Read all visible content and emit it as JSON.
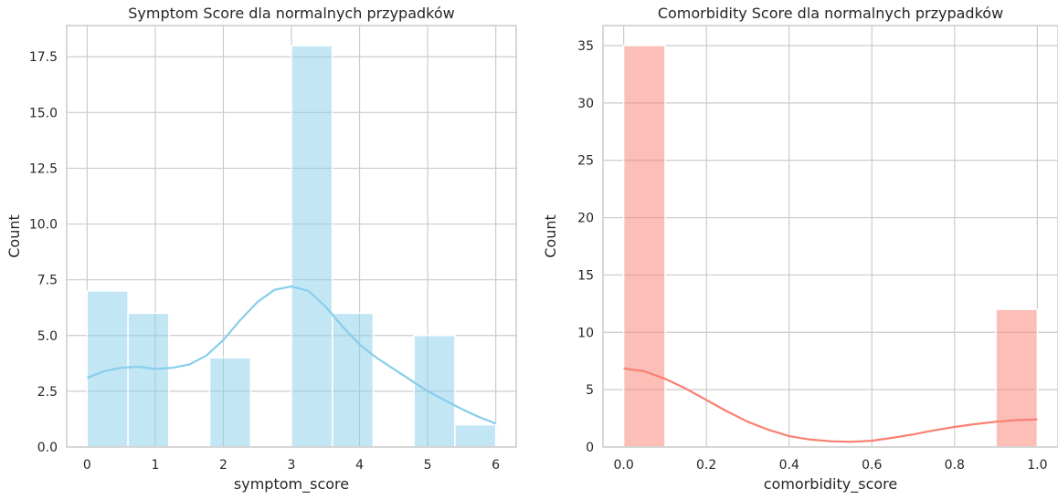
{
  "chart_data": [
    {
      "type": "bar",
      "title": "Symptom Score dla normalnych przypadków",
      "xlabel": "symptom_score",
      "ylabel": "Count",
      "xlim": [
        -0.3,
        6.3
      ],
      "ylim": [
        0,
        18.9
      ],
      "xticks": [
        0,
        1,
        2,
        3,
        4,
        5,
        6
      ],
      "xtick_labels": [
        "0",
        "1",
        "2",
        "3",
        "4",
        "5",
        "6"
      ],
      "yticks": [
        0,
        2.5,
        5,
        7.5,
        10,
        12.5,
        15,
        17.5
      ],
      "ytick_labels": [
        "0.0",
        "2.5",
        "5.0",
        "7.5",
        "10.0",
        "12.5",
        "15.0",
        "17.5"
      ],
      "grid": true,
      "bar_color": "#87CEEB",
      "bins": [
        {
          "x0": 0.0,
          "x1": 0.6,
          "count": 7
        },
        {
          "x0": 0.6,
          "x1": 1.2,
          "count": 6
        },
        {
          "x0": 1.8,
          "x1": 2.4,
          "count": 4
        },
        {
          "x0": 3.0,
          "x1": 3.6,
          "count": 18
        },
        {
          "x0": 3.6,
          "x1": 4.2,
          "count": 6
        },
        {
          "x0": 4.8,
          "x1": 5.4,
          "count": 5
        },
        {
          "x0": 5.4,
          "x1": 6.0,
          "count": 1
        }
      ],
      "kde": {
        "color": "#87CEEB",
        "x": [
          0,
          0.25,
          0.5,
          0.75,
          1.0,
          1.25,
          1.5,
          1.75,
          2.0,
          2.25,
          2.5,
          2.75,
          3.0,
          3.25,
          3.5,
          3.75,
          4.0,
          4.25,
          4.5,
          4.75,
          5.0,
          5.25,
          5.5,
          5.75,
          6.0
        ],
        "y": [
          3.1,
          3.4,
          3.55,
          3.6,
          3.5,
          3.55,
          3.7,
          4.1,
          4.8,
          5.7,
          6.5,
          7.05,
          7.2,
          7.0,
          6.3,
          5.4,
          4.6,
          4.0,
          3.5,
          3.0,
          2.5,
          2.1,
          1.7,
          1.35,
          1.05
        ]
      }
    },
    {
      "type": "bar",
      "title": "Comorbidity Score dla normalnych przypadków",
      "xlabel": "comorbidity_score",
      "ylabel": "Count",
      "xlim": [
        -0.05,
        1.05
      ],
      "ylim": [
        0,
        36.75
      ],
      "xticks": [
        0,
        0.2,
        0.4,
        0.6,
        0.8,
        1.0
      ],
      "xtick_labels": [
        "0.0",
        "0.2",
        "0.4",
        "0.6",
        "0.8",
        "1.0"
      ],
      "yticks": [
        0,
        5,
        10,
        15,
        20,
        25,
        30,
        35
      ],
      "ytick_labels": [
        "0",
        "5",
        "10",
        "15",
        "20",
        "25",
        "30",
        "35"
      ],
      "grid": true,
      "bar_color": "#FA8072",
      "bins": [
        {
          "x0": 0.0,
          "x1": 0.1,
          "count": 35
        },
        {
          "x0": 0.9,
          "x1": 1.0,
          "count": 12
        }
      ],
      "kde": {
        "color": "#FA8072",
        "x": [
          0,
          0.05,
          0.1,
          0.15,
          0.2,
          0.25,
          0.3,
          0.35,
          0.4,
          0.45,
          0.5,
          0.55,
          0.6,
          0.65,
          0.7,
          0.75,
          0.8,
          0.85,
          0.9,
          0.95,
          1.0
        ],
        "y": [
          6.85,
          6.6,
          5.95,
          5.1,
          4.1,
          3.1,
          2.2,
          1.5,
          0.95,
          0.65,
          0.5,
          0.45,
          0.55,
          0.8,
          1.1,
          1.45,
          1.75,
          2.0,
          2.2,
          2.35,
          2.4
        ]
      }
    }
  ]
}
